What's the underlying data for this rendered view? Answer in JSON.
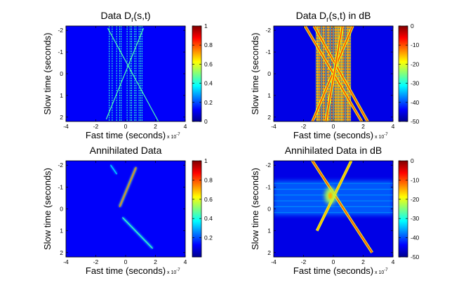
{
  "chart_data": [
    {
      "type": "heatmap",
      "title": "Data D",
      "title_sub": "r",
      "title_rest": "(s,t)",
      "xlabel": "Fast time (seconds)",
      "ylabel": "Slow time (seconds)",
      "x_multiplier_label": "x 10",
      "x_multiplier_exp": "-7",
      "xlim": [
        -4,
        4
      ],
      "ylim": [
        -2.2,
        2.2
      ],
      "y_reversed": true,
      "x_ticks": [
        "-4",
        "-2",
        "0",
        "2",
        "4"
      ],
      "y_ticks": [
        "-2",
        "-1",
        "0",
        "1",
        "2"
      ],
      "colorbar": {
        "range": [
          0,
          1
        ],
        "ticks": [
          "0",
          "0.2",
          "0.4",
          "0.6",
          "0.8",
          "1"
        ]
      },
      "scale": "linear",
      "features": {
        "vertical_lines_x": [
          -1.1,
          -0.9,
          -0.6,
          -0.4,
          -0.3,
          0.1,
          0.3,
          0.4,
          0.6,
          0.7,
          0.9,
          1.0,
          1.1
        ],
        "diagonal_lines": [
          {
            "from": [
              -1.2,
              -2.1
            ],
            "to": [
              2.2,
              2.2
            ]
          },
          {
            "from": [
              1.2,
              -2.1
            ],
            "to": [
              -1.3,
              2.1
            ]
          }
        ]
      }
    },
    {
      "type": "heatmap",
      "title": "Data D",
      "title_sub": "r",
      "title_rest": "(s,t) in dB",
      "xlabel": "Fast time (seconds)",
      "ylabel": "Slow time (seconds)",
      "x_multiplier_label": "x 10",
      "x_multiplier_exp": "-7",
      "xlim": [
        -4,
        4
      ],
      "ylim": [
        -2.2,
        2.2
      ],
      "y_reversed": true,
      "x_ticks": [
        "-4",
        "-2",
        "0",
        "2",
        "4"
      ],
      "y_ticks": [
        "-2",
        "-1",
        "0",
        "1",
        "2"
      ],
      "colorbar": {
        "range": [
          -50,
          0
        ],
        "ticks": [
          "0",
          "-10",
          "-20",
          "-30",
          "-40",
          "-50"
        ]
      },
      "scale": "dB",
      "features": {
        "vertical_lines_x": [
          -1.1,
          -1.0,
          -0.9,
          -0.7,
          -0.6,
          -0.4,
          -0.3,
          -0.1,
          0.1,
          0.2,
          0.3,
          0.4,
          0.5,
          0.6,
          0.7,
          0.9,
          1.0,
          1.1
        ],
        "diagonal_lines": [
          {
            "from": [
              -1.3,
              -2.2
            ],
            "to": [
              2.3,
              2.2
            ]
          },
          {
            "from": [
              1.3,
              -2.2
            ],
            "to": [
              -1.4,
              2.2
            ]
          },
          {
            "from": [
              -1.9,
              -2.2
            ],
            "to": [
              1.9,
              2.2
            ]
          },
          {
            "from": [
              0.6,
              -2.2
            ],
            "to": [
              -0.5,
              2.2
            ]
          }
        ]
      }
    },
    {
      "type": "heatmap",
      "title": "Annihilated Data",
      "xlabel": "Fast time (seconds)",
      "ylabel": "Slow time (seconds)",
      "x_multiplier_label": "x 10",
      "x_multiplier_exp": "-7",
      "xlim": [
        -4,
        4
      ],
      "ylim": [
        -2.2,
        2.2
      ],
      "y_reversed": true,
      "x_ticks": [
        "-4",
        "-2",
        "0",
        "2",
        "4"
      ],
      "y_ticks": [
        "-2",
        "-1",
        "0",
        "1",
        "2"
      ],
      "colorbar": {
        "range": [
          0,
          1
        ],
        "ticks": [
          "0.2",
          "0.4",
          "0.6",
          "0.8",
          "1"
        ]
      },
      "scale": "linear",
      "features": {
        "streaks": [
          {
            "from": [
              -1.0,
              -2.0
            ],
            "to": [
              -0.6,
              -1.6
            ],
            "peak": 0.35
          },
          {
            "from": [
              0.7,
              -1.9
            ],
            "to": [
              -0.4,
              -0.1
            ],
            "peak": 0.75
          },
          {
            "from": [
              -0.2,
              0.4
            ],
            "to": [
              1.8,
              1.8
            ],
            "peak": 0.45
          }
        ]
      }
    },
    {
      "type": "heatmap",
      "title": "Annihilated Data in dB",
      "xlabel": "Fast time (seconds)",
      "ylabel": "Slow time (seconds)",
      "x_multiplier_label": "x 10",
      "x_multiplier_exp": "-7",
      "xlim": [
        -4,
        4
      ],
      "ylim": [
        -2.2,
        2.2
      ],
      "y_reversed": true,
      "x_ticks": [
        "-4",
        "-2",
        "0",
        "2",
        "4"
      ],
      "y_ticks": [
        "-2",
        "-1",
        "0",
        "1",
        "2"
      ],
      "colorbar": {
        "range": [
          -50,
          0
        ],
        "ticks": [
          "0",
          "-10",
          "-20",
          "-30",
          "-40",
          "-50"
        ]
      },
      "scale": "dB",
      "features": {
        "diagonal_lines": [
          {
            "from": [
              -1.5,
              -2.3
            ],
            "to": [
              2.6,
              2.0
            ],
            "level": -10
          },
          {
            "from": [
              1.2,
              -2.2
            ],
            "to": [
              -1.1,
              1.0
            ],
            "level": -15
          }
        ],
        "horizontal_band_y": [
          -1.3,
          0.3
        ],
        "hotspot": [
          -0.2,
          -0.6
        ]
      }
    }
  ]
}
